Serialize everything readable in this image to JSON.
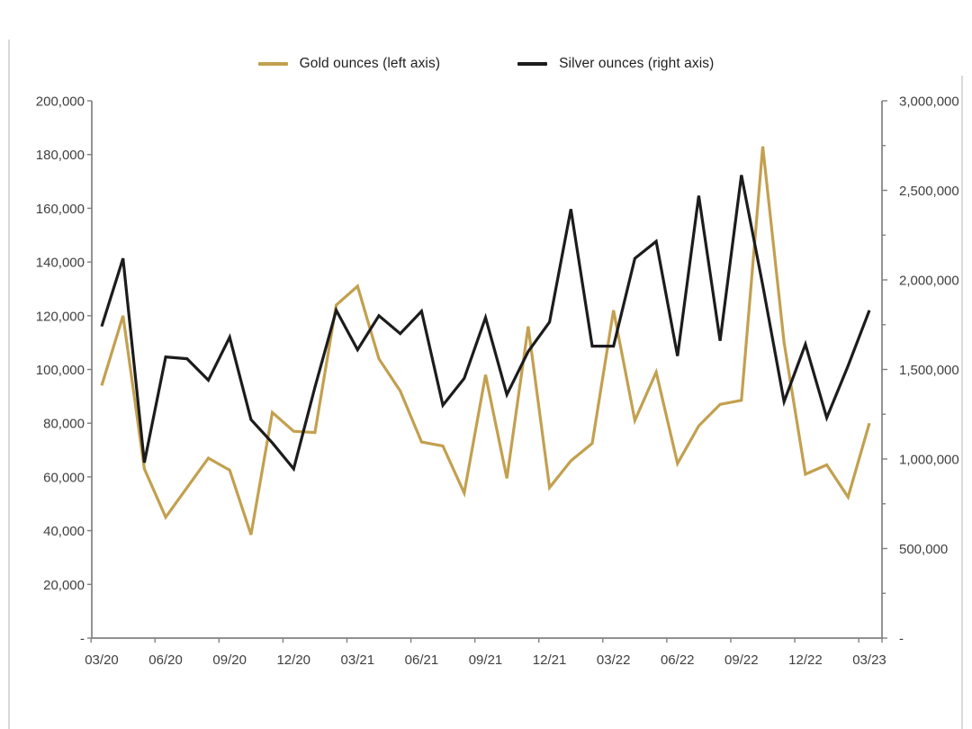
{
  "legend": {
    "items": [
      {
        "label": "Gold ounces (left axis)",
        "color": "#c3a04f"
      },
      {
        "label": "Silver ounces (right axis)",
        "color": "#1c1c1c"
      }
    ]
  },
  "chart_data": {
    "type": "line",
    "title": "",
    "x": [
      "03/20",
      "04/20",
      "05/20",
      "06/20",
      "07/20",
      "08/20",
      "09/20",
      "10/20",
      "11/20",
      "12/20",
      "01/21",
      "02/21",
      "03/21",
      "04/21",
      "05/21",
      "06/21",
      "07/21",
      "08/21",
      "09/21",
      "10/21",
      "11/21",
      "12/21",
      "01/22",
      "02/22",
      "03/22",
      "04/22",
      "05/22",
      "06/22",
      "07/22",
      "08/22",
      "09/22",
      "10/22",
      "11/22",
      "12/22",
      "01/23",
      "02/23",
      "03/23"
    ],
    "x_axis_tick_labels": [
      "03/20",
      "06/20",
      "09/20",
      "12/20",
      "03/21",
      "06/21",
      "09/21",
      "12/21",
      "03/22",
      "06/22",
      "09/22",
      "12/22",
      "03/23"
    ],
    "series": [
      {
        "name": "Gold ounces (left axis)",
        "axis": "left",
        "color": "#c3a04f",
        "values": [
          94000,
          120000,
          63000,
          45000,
          56000,
          67000,
          62500,
          38500,
          84000,
          77000,
          76500,
          124000,
          131000,
          104000,
          92000,
          73000,
          71500,
          54000,
          98000,
          59500,
          116000,
          56000,
          66000,
          72500,
          122000,
          81000,
          99000,
          65000,
          79000,
          87000,
          88500,
          183000,
          110000,
          61000,
          64500,
          52500,
          80000
        ]
      },
      {
        "name": "Silver ounces (right axis)",
        "axis": "right",
        "color": "#1c1c1c",
        "values": [
          1740000,
          2120000,
          980000,
          1570000,
          1560000,
          1440000,
          1680000,
          1220000,
          1090000,
          945000,
          1400000,
          1830000,
          1610000,
          1800000,
          1700000,
          1825000,
          1300000,
          1450000,
          1790000,
          1360000,
          1600000,
          1765000,
          2395000,
          1630000,
          1630000,
          2120000,
          2215000,
          1575000,
          2470000,
          1660000,
          2585000,
          1970000,
          1320000,
          1640000,
          1230000,
          1520000,
          1830000
        ]
      }
    ],
    "left_axis": {
      "min": 0,
      "max": 200000,
      "tick_step": 20000,
      "tick_labels": [
        "200,000",
        "180,000",
        "160,000",
        "140,000",
        "120,000",
        "100,000",
        "80,000",
        "60,000",
        "40,000",
        "20,000",
        "-"
      ]
    },
    "right_axis": {
      "min": 0,
      "max": 3000000,
      "tick_step": 500000,
      "minor_tick_step": 250000,
      "tick_labels": [
        "3,000,000",
        "2,500,000",
        "2,000,000",
        "1,500,000",
        "1,000,000",
        "500,000",
        "-"
      ]
    },
    "grid": false,
    "legend_position": "top-center",
    "axis_color": "#808080",
    "label_color": "#3f3f3f"
  }
}
